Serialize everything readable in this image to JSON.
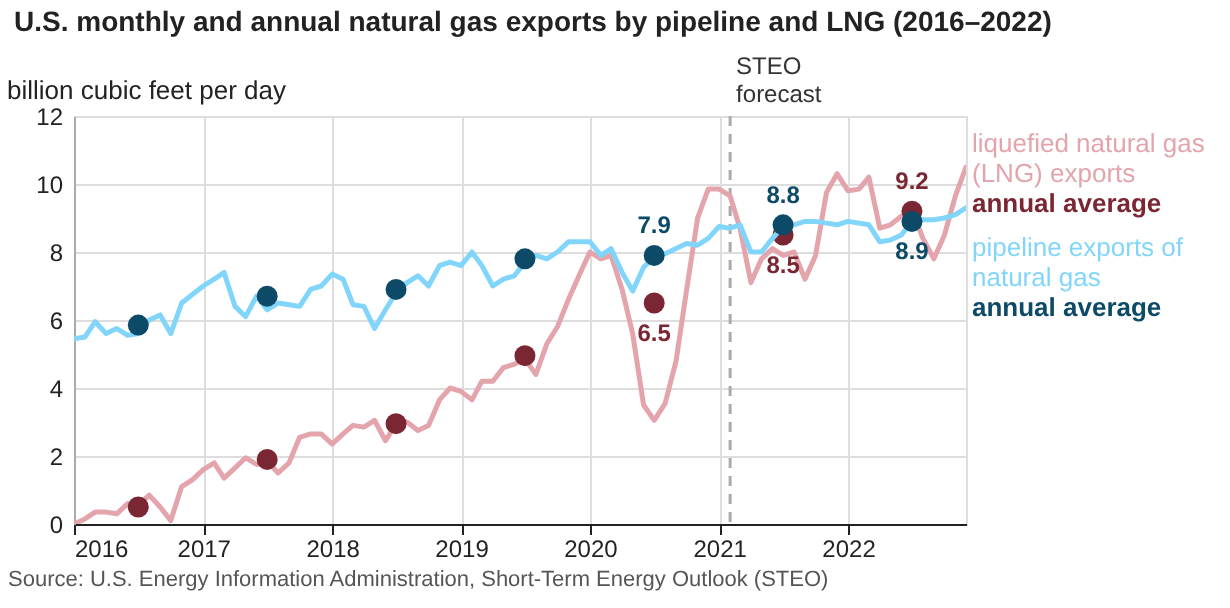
{
  "chart_data": {
    "type": "line",
    "title": "U.S. monthly and annual natural gas exports by pipeline and LNG (2016–2022)",
    "ylabel": "billion cubic feet per day",
    "x": [
      "2016-01",
      "2016-02",
      "2016-03",
      "2016-04",
      "2016-05",
      "2016-06",
      "2016-07",
      "2016-08",
      "2016-09",
      "2016-10",
      "2016-11",
      "2016-12",
      "2017-01",
      "2017-02",
      "2017-03",
      "2017-04",
      "2017-05",
      "2017-06",
      "2017-07",
      "2017-08",
      "2017-09",
      "2017-10",
      "2017-11",
      "2017-12",
      "2018-01",
      "2018-02",
      "2018-03",
      "2018-04",
      "2018-05",
      "2018-06",
      "2018-07",
      "2018-08",
      "2018-09",
      "2018-10",
      "2018-11",
      "2018-12",
      "2019-01",
      "2019-02",
      "2019-03",
      "2019-04",
      "2019-05",
      "2019-06",
      "2019-07",
      "2019-08",
      "2019-09",
      "2019-10",
      "2019-11",
      "2019-12",
      "2020-01",
      "2020-02",
      "2020-03",
      "2020-04",
      "2020-05",
      "2020-06",
      "2020-07",
      "2020-08",
      "2020-09",
      "2020-10",
      "2020-11",
      "2020-12",
      "2021-01",
      "2021-02",
      "2021-03",
      "2021-04",
      "2021-05",
      "2021-06",
      "2021-07",
      "2021-08",
      "2021-09",
      "2021-10",
      "2021-11",
      "2021-12",
      "2022-01",
      "2022-02",
      "2022-03",
      "2022-04",
      "2022-05",
      "2022-06",
      "2022-07",
      "2022-08",
      "2022-09",
      "2022-10",
      "2022-11",
      "2022-12"
    ],
    "series": [
      {
        "name": "liquefied natural gas (LNG) exports",
        "type": "line",
        "color": "#e3a4ab",
        "values": [
          0,
          0.15,
          0.35,
          0.35,
          0.3,
          0.6,
          0.55,
          0.85,
          0.5,
          0.1,
          1.1,
          1.3,
          1.6,
          1.8,
          1.35,
          1.65,
          1.95,
          1.75,
          1.85,
          1.5,
          1.8,
          2.55,
          2.65,
          2.65,
          2.35,
          2.65,
          2.9,
          2.85,
          3.05,
          2.45,
          2.95,
          3.0,
          2.75,
          2.9,
          3.65,
          4.0,
          3.9,
          3.65,
          4.2,
          4.2,
          4.6,
          4.7,
          4.85,
          4.4,
          5.3,
          5.8,
          6.6,
          7.3,
          8.0,
          7.8,
          7.9,
          6.9,
          5.6,
          3.5,
          3.05,
          3.55,
          4.8,
          6.9,
          9.0,
          9.85,
          9.85,
          9.65,
          8.7,
          7.1,
          7.8,
          8.1,
          7.9,
          8.0,
          7.2,
          7.9,
          9.75,
          10.3,
          9.8,
          9.85,
          10.2,
          8.7,
          8.8,
          9.05,
          9.25,
          8.4,
          7.8,
          8.5,
          9.65,
          10.5
        ]
      },
      {
        "name": "annual average",
        "type": "scatter",
        "color": "#7b2733",
        "x": [
          "2016-07",
          "2017-07",
          "2018-07",
          "2019-07",
          "2020-07",
          "2021-07",
          "2022-07"
        ],
        "values": [
          0.5,
          1.9,
          2.95,
          4.95,
          6.5,
          8.5,
          9.2
        ],
        "value_labels": [
          null,
          null,
          null,
          null,
          "6.5",
          "8.5",
          "9.2"
        ]
      },
      {
        "name": "pipeline exports of natural gas",
        "type": "line",
        "color": "#82d5fa",
        "values": [
          5.45,
          5.5,
          5.95,
          5.6,
          5.75,
          5.55,
          5.6,
          6.0,
          6.15,
          5.6,
          6.5,
          6.75,
          7.0,
          7.2,
          7.4,
          6.4,
          6.1,
          6.7,
          6.3,
          6.5,
          6.45,
          6.4,
          6.9,
          7.0,
          7.35,
          7.2,
          6.45,
          6.4,
          5.75,
          6.3,
          6.8,
          7.1,
          7.3,
          7.0,
          7.6,
          7.7,
          7.6,
          8.0,
          7.6,
          7.0,
          7.2,
          7.3,
          7.7,
          7.9,
          7.8,
          8.0,
          8.3,
          8.3,
          8.3,
          7.9,
          8.1,
          7.4,
          6.85,
          7.55,
          7.85,
          7.95,
          8.1,
          8.25,
          8.2,
          8.4,
          8.75,
          8.7,
          8.8,
          8.0,
          8.0,
          8.4,
          8.75,
          8.8,
          8.9,
          8.9,
          8.85,
          8.8,
          8.9,
          8.85,
          8.8,
          8.3,
          8.35,
          8.5,
          8.9,
          8.95,
          8.95,
          9.0,
          9.1,
          9.3
        ]
      },
      {
        "name": "annual average",
        "type": "scatter",
        "color": "#0d4a68",
        "x": [
          "2016-07",
          "2017-07",
          "2018-07",
          "2019-07",
          "2020-07",
          "2021-07",
          "2022-07"
        ],
        "values": [
          5.85,
          6.7,
          6.9,
          7.8,
          7.9,
          8.8,
          8.9
        ],
        "value_labels": [
          null,
          null,
          null,
          null,
          "7.9",
          "8.8",
          "8.9"
        ]
      }
    ],
    "xlim": [
      "2016-01",
      "2022-12"
    ],
    "xticks": [
      "2016",
      "2017",
      "2018",
      "2019",
      "2020",
      "2021",
      "2022"
    ],
    "ylim": [
      0,
      12
    ],
    "yticks": [
      0,
      2,
      4,
      6,
      8,
      10,
      12
    ],
    "grid": true,
    "legend": "right",
    "ref_lines": [
      {
        "axis": "x",
        "value": "2021-02",
        "label": "STEO forecast",
        "color": "#aaaaaa",
        "line_style": "dashed"
      }
    ],
    "annotations": [
      "Source: U.S. Energy Information Administration, Short-Term Energy Outlook (STEO)"
    ]
  }
}
